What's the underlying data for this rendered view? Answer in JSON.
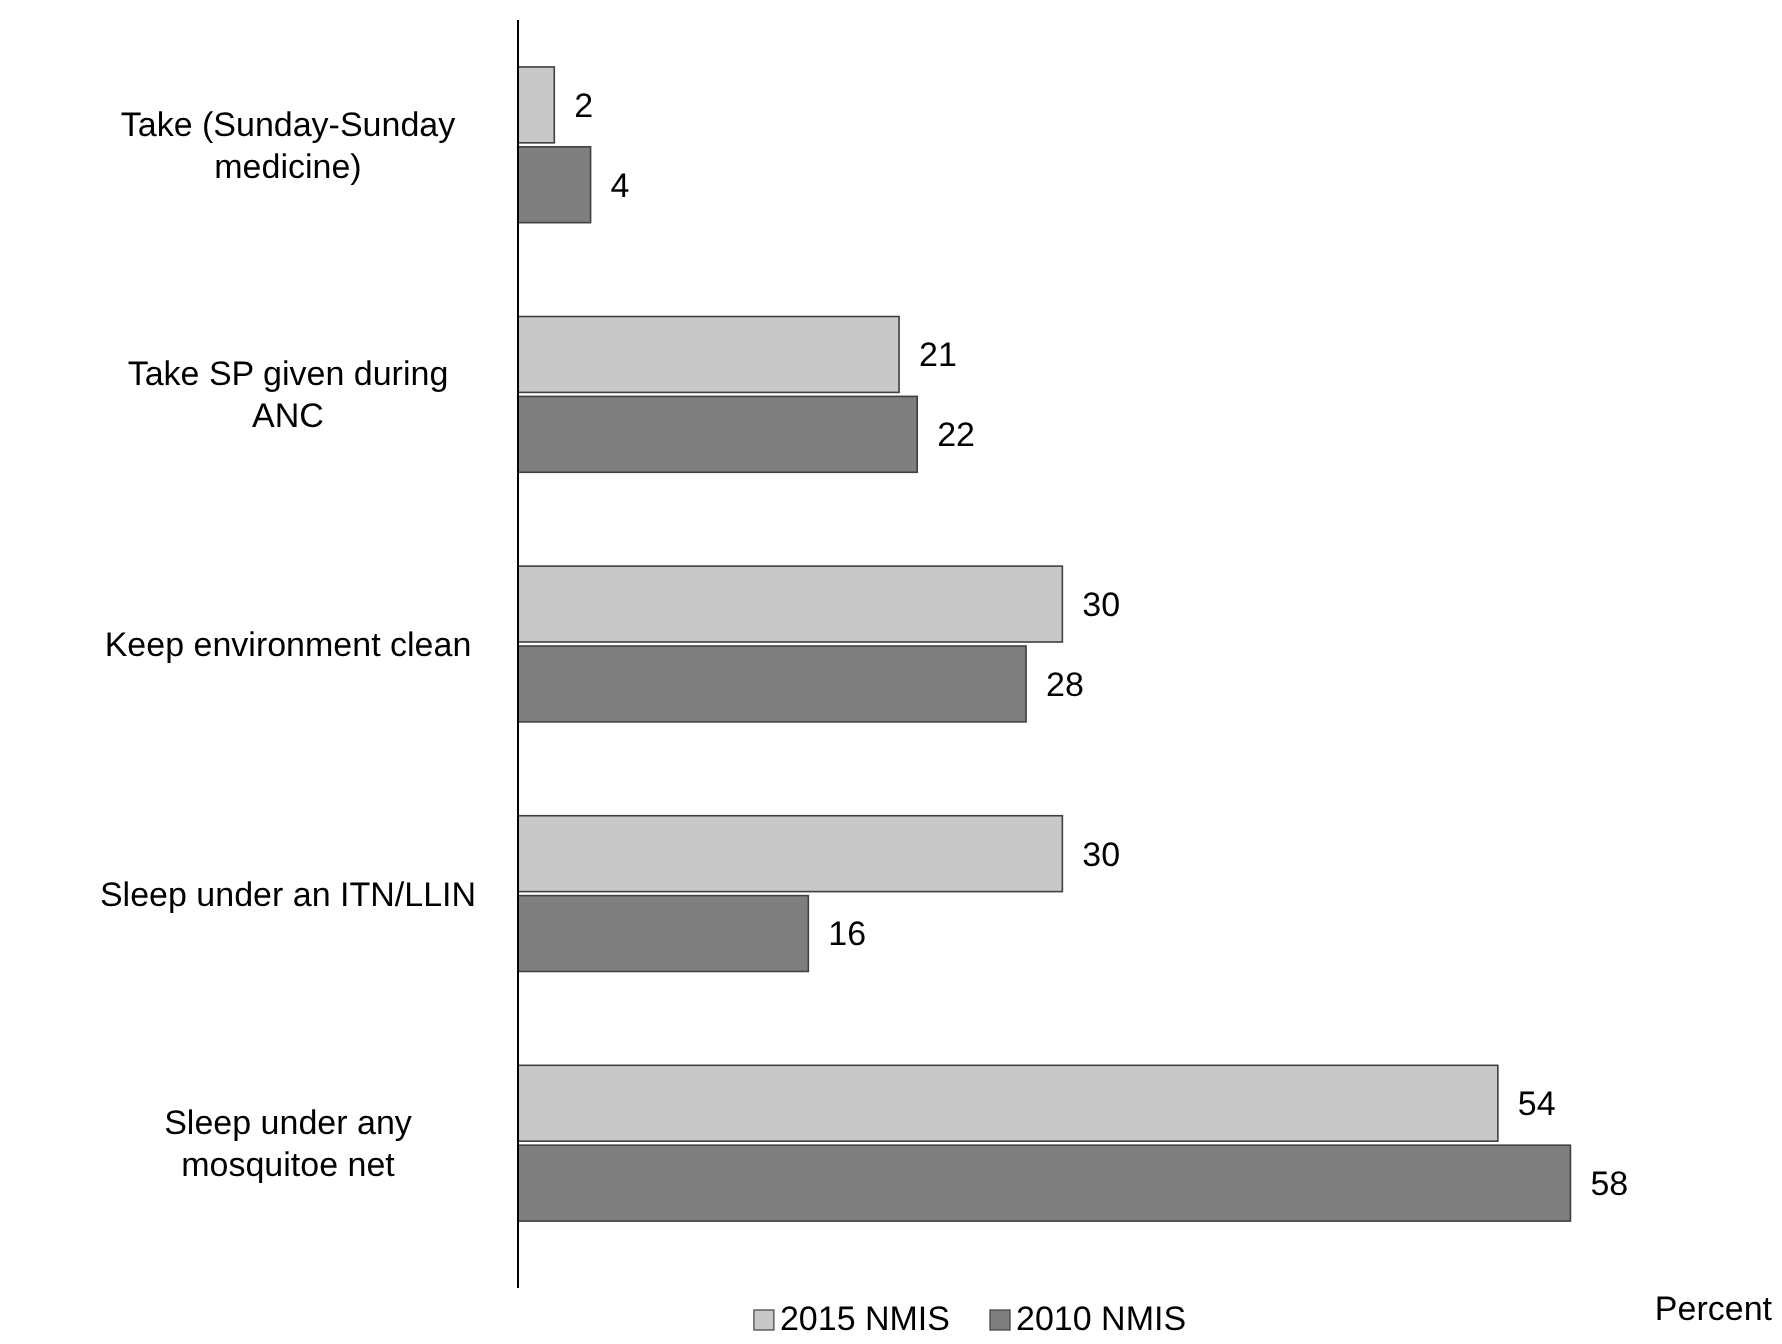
{
  "chart_data": {
    "type": "bar",
    "orientation": "horizontal",
    "categories": [
      "Take (Sunday-Sunday medicine)",
      "Take SP given during ANC",
      "Keep environment clean",
      "Sleep under an ITN/LLIN",
      "Sleep under any mosquitoe net"
    ],
    "series": [
      {
        "name": "2015 NMIS",
        "color": "#c8c8c8",
        "values": [
          2,
          21,
          30,
          30,
          54
        ]
      },
      {
        "name": "2010 NMIS",
        "color": "#7f7f7f",
        "values": [
          4,
          22,
          28,
          16,
          58
        ]
      }
    ],
    "data_labels": true,
    "legend": "bottom",
    "annotations": [
      "Percent"
    ]
  }
}
